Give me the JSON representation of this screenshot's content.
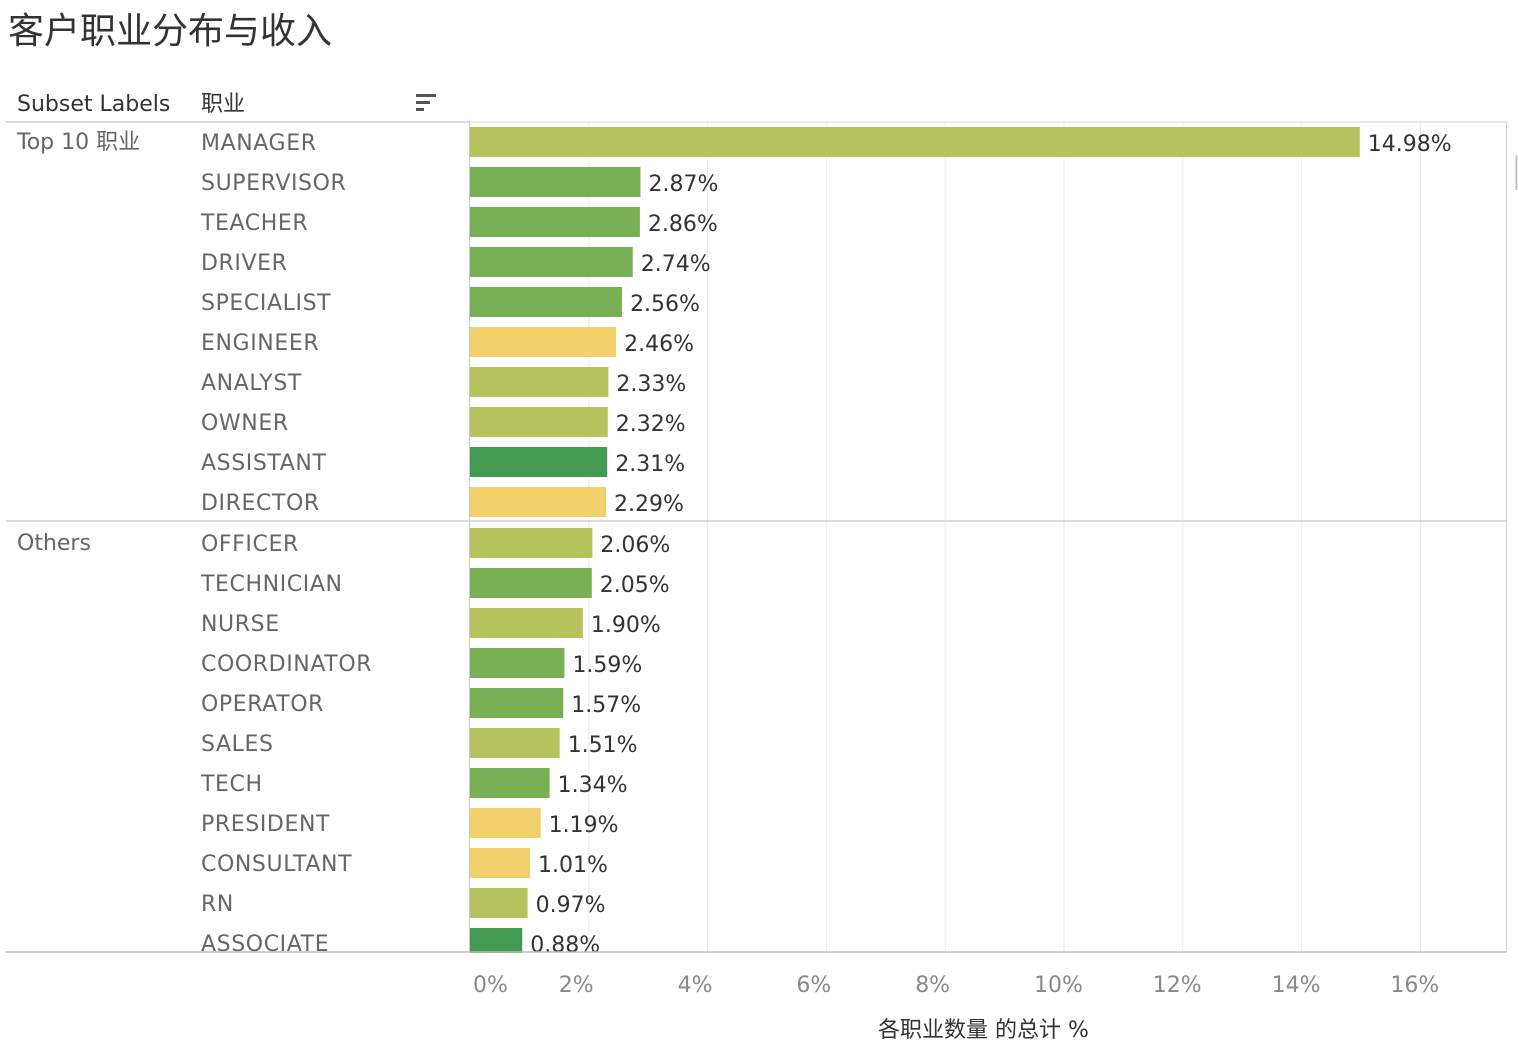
{
  "title": "客户职业分布与收入",
  "header": {
    "subset_col": "Subset Labels",
    "job_col": "职业",
    "sort_icon": "sort-descending-icon"
  },
  "chart_data": {
    "type": "bar",
    "orientation": "horizontal",
    "title": "客户职业分布与收入",
    "xlabel": "各职业数量 的总计 %",
    "ylabel": "职业",
    "xlim": [
      0,
      16.5
    ],
    "x_ticks": [
      "0%",
      "2%",
      "4%",
      "6%",
      "8%",
      "10%",
      "12%",
      "14%",
      "16%"
    ],
    "x_tick_values": [
      0,
      2,
      4,
      6,
      8,
      10,
      12,
      14,
      16
    ],
    "grid": true,
    "colors": {
      "olive": "#b5c25d",
      "green": "#79b055",
      "yellow": "#f2d06b",
      "darkgreen": "#439b52"
    },
    "groups": [
      {
        "label": "Top 10 职业",
        "rows": [
          {
            "category": "MANAGER",
            "value": 14.98,
            "label": "14.98%",
            "color": "olive"
          },
          {
            "category": "SUPERVISOR",
            "value": 2.87,
            "label": "2.87%",
            "color": "green"
          },
          {
            "category": "TEACHER",
            "value": 2.86,
            "label": "2.86%",
            "color": "green"
          },
          {
            "category": "DRIVER",
            "value": 2.74,
            "label": "2.74%",
            "color": "green"
          },
          {
            "category": "SPECIALIST",
            "value": 2.56,
            "label": "2.56%",
            "color": "green"
          },
          {
            "category": "ENGINEER",
            "value": 2.46,
            "label": "2.46%",
            "color": "yellow"
          },
          {
            "category": "ANALYST",
            "value": 2.33,
            "label": "2.33%",
            "color": "olive"
          },
          {
            "category": "OWNER",
            "value": 2.32,
            "label": "2.32%",
            "color": "olive"
          },
          {
            "category": "ASSISTANT",
            "value": 2.31,
            "label": "2.31%",
            "color": "darkgreen"
          },
          {
            "category": "DIRECTOR",
            "value": 2.29,
            "label": "2.29%",
            "color": "yellow"
          }
        ]
      },
      {
        "label": "Others",
        "rows": [
          {
            "category": "OFFICER",
            "value": 2.06,
            "label": "2.06%",
            "color": "olive"
          },
          {
            "category": "TECHNICIAN",
            "value": 2.05,
            "label": "2.05%",
            "color": "green"
          },
          {
            "category": "NURSE",
            "value": 1.9,
            "label": "1.90%",
            "color": "olive"
          },
          {
            "category": "COORDINATOR",
            "value": 1.59,
            "label": "1.59%",
            "color": "green"
          },
          {
            "category": "OPERATOR",
            "value": 1.57,
            "label": "1.57%",
            "color": "green"
          },
          {
            "category": "SALES",
            "value": 1.51,
            "label": "1.51%",
            "color": "olive"
          },
          {
            "category": "TECH",
            "value": 1.34,
            "label": "1.34%",
            "color": "green"
          },
          {
            "category": "PRESIDENT",
            "value": 1.19,
            "label": "1.19%",
            "color": "yellow"
          },
          {
            "category": "CONSULTANT",
            "value": 1.01,
            "label": "1.01%",
            "color": "yellow"
          },
          {
            "category": "RN",
            "value": 0.97,
            "label": "0.97%",
            "color": "olive"
          },
          {
            "category": "ASSOCIATE",
            "value": 0.88,
            "label": "0.88%",
            "color": "darkgreen"
          }
        ]
      }
    ]
  }
}
